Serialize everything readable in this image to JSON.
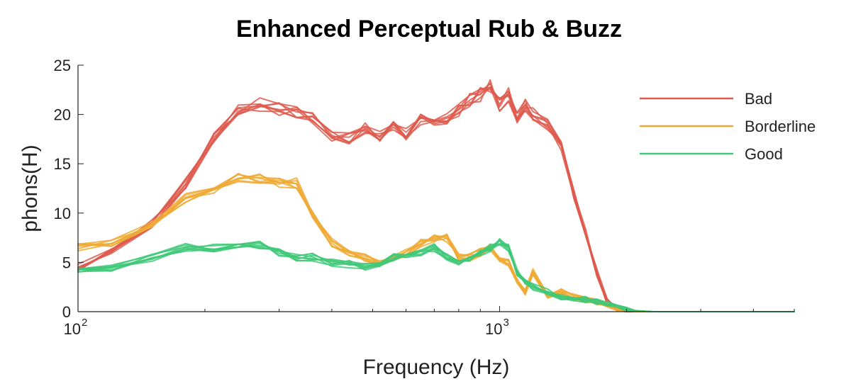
{
  "chart_data": {
    "type": "line",
    "title": "Enhanced Perceptual Rub & Buzz",
    "xlabel": "Frequency (Hz)",
    "ylabel": "phons(H)",
    "xscale": "log",
    "xlim": [
      100,
      5000
    ],
    "ylim": [
      0,
      25
    ],
    "yticks": [
      0,
      5,
      10,
      15,
      20,
      25
    ],
    "xticks": [
      {
        "value": 100,
        "base": "10",
        "exp": "2"
      },
      {
        "value": 1000,
        "base": "10",
        "exp": "3"
      }
    ],
    "grid": false,
    "legend_position": "top-right",
    "series": [
      {
        "name": "Bad",
        "color": "#de5a4e",
        "x": [
          100,
          120,
          150,
          180,
          210,
          240,
          270,
          300,
          330,
          360,
          400,
          440,
          480,
          520,
          560,
          600,
          650,
          700,
          750,
          800,
          850,
          900,
          950,
          1000,
          1050,
          1100,
          1150,
          1200,
          1300,
          1400,
          1500,
          1600,
          1700,
          1800,
          1900,
          2000,
          2100,
          2300,
          2600,
          3000,
          4000,
          5000
        ],
        "y": [
          4.5,
          6.0,
          9.0,
          13.0,
          17.5,
          20.5,
          21.0,
          20.5,
          20.3,
          19.5,
          17.8,
          17.5,
          18.5,
          17.8,
          19.0,
          18.0,
          19.5,
          19.0,
          19.5,
          20.5,
          21.5,
          22.0,
          23.0,
          21.0,
          22.0,
          19.8,
          21.0,
          20.0,
          19.0,
          17.0,
          12.0,
          8.0,
          4.0,
          1.0,
          0.3,
          0,
          0,
          0,
          0,
          0,
          0,
          0
        ]
      },
      {
        "name": "Borderline",
        "color": "#eeaa35",
        "x": [
          100,
          120,
          150,
          180,
          210,
          240,
          270,
          300,
          330,
          360,
          400,
          440,
          480,
          520,
          560,
          600,
          650,
          700,
          750,
          800,
          850,
          900,
          950,
          1000,
          1050,
          1100,
          1150,
          1200,
          1300,
          1400,
          1500,
          1600,
          1700,
          1800,
          1900,
          2000,
          2100,
          2300,
          2600,
          3000,
          4000,
          5000
        ],
        "y": [
          6.5,
          7.0,
          9.0,
          11.5,
          12.5,
          13.5,
          13.5,
          13.0,
          13.0,
          10.0,
          7.0,
          6.0,
          5.5,
          5.0,
          5.5,
          6.0,
          7.0,
          7.5,
          7.5,
          5.5,
          5.5,
          6.0,
          6.5,
          5.5,
          5.0,
          3.0,
          2.0,
          4.0,
          1.5,
          2.0,
          1.5,
          1.2,
          1.0,
          0.8,
          0.3,
          0.1,
          0,
          0,
          0,
          0,
          0,
          0
        ]
      },
      {
        "name": "Good",
        "color": "#40c878",
        "x": [
          100,
          120,
          150,
          180,
          210,
          240,
          270,
          300,
          330,
          360,
          400,
          440,
          480,
          520,
          560,
          600,
          650,
          700,
          750,
          800,
          850,
          900,
          950,
          1000,
          1050,
          1100,
          1150,
          1200,
          1300,
          1400,
          1500,
          1600,
          1700,
          1800,
          1900,
          2000,
          2100,
          2300,
          2600,
          3000,
          4000,
          5000
        ],
        "y": [
          4.0,
          4.5,
          5.5,
          6.5,
          6.5,
          6.5,
          6.8,
          6.0,
          5.5,
          5.5,
          5.0,
          4.8,
          4.5,
          4.8,
          5.5,
          5.5,
          6.0,
          6.5,
          5.5,
          5.0,
          5.5,
          6.0,
          6.5,
          7.0,
          6.5,
          4.0,
          3.0,
          2.5,
          2.0,
          1.5,
          1.3,
          1.2,
          1.0,
          0.8,
          0.5,
          0.3,
          0.1,
          0,
          0,
          0,
          0,
          0
        ]
      }
    ]
  }
}
